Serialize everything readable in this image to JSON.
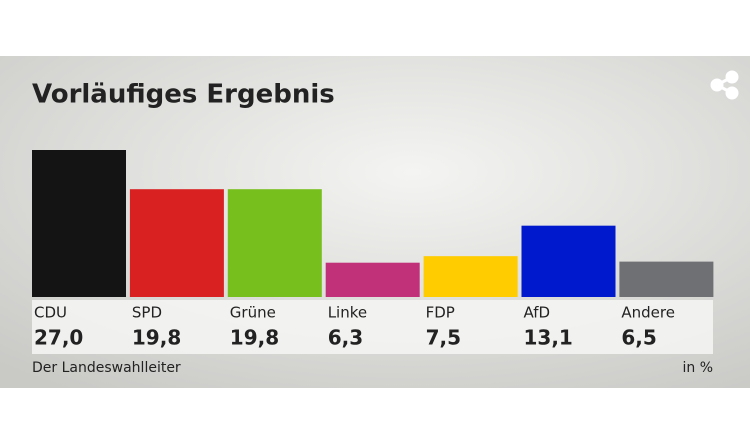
{
  "chart_data": {
    "type": "bar",
    "title": "Vorläufiges Ergebnis",
    "categories": [
      "CDU",
      "SPD",
      "Grüne",
      "Linke",
      "FDP",
      "AfD",
      "Andere"
    ],
    "values": [
      27.0,
      19.8,
      19.8,
      6.3,
      7.5,
      13.1,
      6.5
    ],
    "value_labels": [
      "27,0",
      "19,8",
      "19,8",
      "6,3",
      "7,5",
      "13,1",
      "6,5"
    ],
    "colors": [
      "#141414",
      "#d92121",
      "#77bf1d",
      "#c0317a",
      "#ffcc00",
      "#0019cc",
      "#6f7073"
    ],
    "source": "Der Landeswahlleiter",
    "unit_note": "in %"
  }
}
